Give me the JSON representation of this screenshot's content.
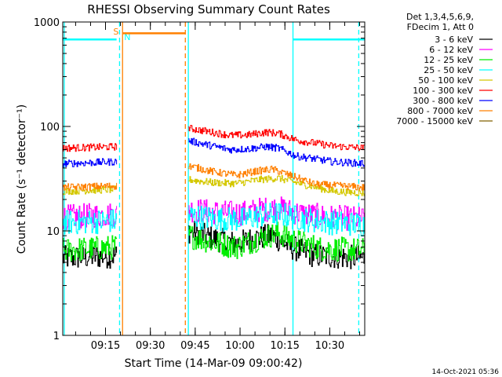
{
  "chart_data": {
    "type": "line",
    "title": "RHESSI Observing Summary Count Rates",
    "xlabel": "Start Time (14-Mar-09 09:00:42)",
    "ylabel": "Count Rate (s⁻¹ detector⁻¹)",
    "yscale": "log",
    "ylim": [
      1,
      1000
    ],
    "xlim_minutes": [
      0,
      101
    ],
    "y_ticks": [
      "1",
      "10",
      "100",
      "1000"
    ],
    "x_ticks": [
      {
        "label": "09:15",
        "minute": 14.3
      },
      {
        "label": "09:30",
        "minute": 29.3
      },
      {
        "label": "09:45",
        "minute": 44.3
      },
      {
        "label": "10:00",
        "minute": 59.3
      },
      {
        "label": "10:15",
        "minute": 74.3
      },
      {
        "label": "10:30",
        "minute": 89.3
      }
    ],
    "legend": {
      "placement": "right",
      "header": [
        "Det 1,3,4,5,6,9,",
        "FDecim 1, Att 0"
      ],
      "entries": [
        {
          "label": "3 - 6 keV",
          "color": "#000000"
        },
        {
          "label": "6 - 12 keV",
          "color": "#ff00ff"
        },
        {
          "label": "12 - 25 keV",
          "color": "#00ee00"
        },
        {
          "label": "25 - 50 keV",
          "color": "#00ffff"
        },
        {
          "label": "50 - 100 keV",
          "color": "#d4c800"
        },
        {
          "label": "100 - 300 keV",
          "color": "#ff0000"
        },
        {
          "label": "300 - 800 keV",
          "color": "#0000ff"
        },
        {
          "label": "800 - 7000 keV",
          "color": "#ff8000"
        },
        {
          "label": "7000 - 15000 keV",
          "color": "#806000"
        }
      ]
    },
    "series": [
      {
        "name": "3 - 6 keV",
        "color": "#000000",
        "segments": [
          {
            "x": [
              0,
              18
            ],
            "y": [
              5.5,
              5.8
            ]
          },
          {
            "x": [
              42,
              50,
              58,
              64,
              70,
              76,
              84,
              101
            ],
            "y": [
              10,
              8.5,
              7.5,
              8.5,
              9,
              7,
              5.8,
              5.5
            ]
          }
        ]
      },
      {
        "name": "6 - 12 keV",
        "color": "#ff00ff",
        "segments": [
          {
            "x": [
              0,
              18
            ],
            "y": [
              13.5,
              14.5
            ]
          },
          {
            "x": [
              42,
              52,
              60,
              66,
              72,
              80,
              90,
              101
            ],
            "y": [
              16,
              15,
              14.8,
              16,
              16.5,
              14.5,
              13.5,
              13
            ]
          }
        ]
      },
      {
        "name": "12 - 25 keV",
        "color": "#00ee00",
        "segments": [
          {
            "x": [
              0,
              18
            ],
            "y": [
              6.5,
              7
            ]
          },
          {
            "x": [
              42,
              50,
              58,
              66,
              72,
              78,
              86,
              101
            ],
            "y": [
              9,
              7.8,
              7,
              8.5,
              9.5,
              8,
              6.8,
              6.5
            ]
          }
        ]
      },
      {
        "name": "25 - 50 keV",
        "color": "#00ffff",
        "segments": [
          {
            "x": [
              0,
              18
            ],
            "y": [
              12,
              12.5
            ]
          },
          {
            "x": [
              42,
              52,
              60,
              66,
              72,
              80,
              90,
              101
            ],
            "y": [
              14,
              13,
              12.8,
              14,
              14.5,
              13,
              12,
              11.5
            ]
          },
          {
            "x": [
              0,
              18
            ],
            "y": [
              680,
              680
            ]
          },
          {
            "x": [
              77,
              101
            ],
            "y": [
              680,
              680
            ]
          }
        ]
      },
      {
        "name": "50 - 100 keV",
        "color": "#d4c800",
        "segments": [
          {
            "x": [
              0,
              18
            ],
            "y": [
              24,
              25
            ]
          },
          {
            "x": [
              42,
              50,
              58,
              66,
              72,
              80,
              90,
              101
            ],
            "y": [
              31,
              29,
              28.5,
              31,
              32,
              28,
              24,
              23
            ]
          }
        ]
      },
      {
        "name": "100 - 300 keV",
        "color": "#ff0000",
        "segments": [
          {
            "x": [
              0,
              18
            ],
            "y": [
              62,
              64
            ]
          },
          {
            "x": [
              42,
              50,
              56,
              62,
              68,
              72,
              78,
              90,
              101
            ],
            "y": [
              96,
              88,
              82,
              83,
              88,
              86,
              74,
              65,
              62
            ]
          }
        ]
      },
      {
        "name": "300 - 800 keV",
        "color": "#0000ff",
        "segments": [
          {
            "x": [
              0,
              18
            ],
            "y": [
              44,
              46
            ]
          },
          {
            "x": [
              42,
              50,
              56,
              62,
              68,
              72,
              78,
              90,
              101
            ],
            "y": [
              73,
              65,
              60,
              61,
              64,
              62,
              52,
              46,
              44
            ]
          }
        ]
      },
      {
        "name": "800 - 7000 keV",
        "color": "#ff8000",
        "segments": [
          {
            "x": [
              0,
              18
            ],
            "y": [
              26,
              27
            ]
          },
          {
            "x": [
              42,
              50,
              58,
              64,
              70,
              76,
              84,
              101
            ],
            "y": [
              42,
              37,
              34,
              37,
              39,
              34,
              28,
              26
            ]
          },
          {
            "x": [
              20,
              41
            ],
            "y": [
              780,
              780
            ]
          }
        ]
      }
    ],
    "annotations": [
      {
        "label": "S",
        "minute": 19,
        "color": "#ff8000",
        "style": "dashed",
        "y": 800
      },
      {
        "label": "N",
        "minute": 20,
        "color": "#00ffff",
        "style": "dashed",
        "y": 650
      }
    ],
    "vertical_markers": [
      {
        "minute": 0.5,
        "color": "#00ffff",
        "style": "solid"
      },
      {
        "minute": 19,
        "color": "#00ffff",
        "style": "dashed"
      },
      {
        "minute": 20,
        "color": "#ff8000",
        "style": "solid"
      },
      {
        "minute": 41,
        "color": "#ff8000",
        "style": "dashed"
      },
      {
        "minute": 42,
        "color": "#00ffff",
        "style": "solid"
      },
      {
        "minute": 77,
        "color": "#00ffff",
        "style": "solid"
      },
      {
        "minute": 99,
        "color": "#00ffff",
        "style": "dashed"
      }
    ]
  },
  "footer": {
    "date": "14-Oct-2021 05:36"
  }
}
